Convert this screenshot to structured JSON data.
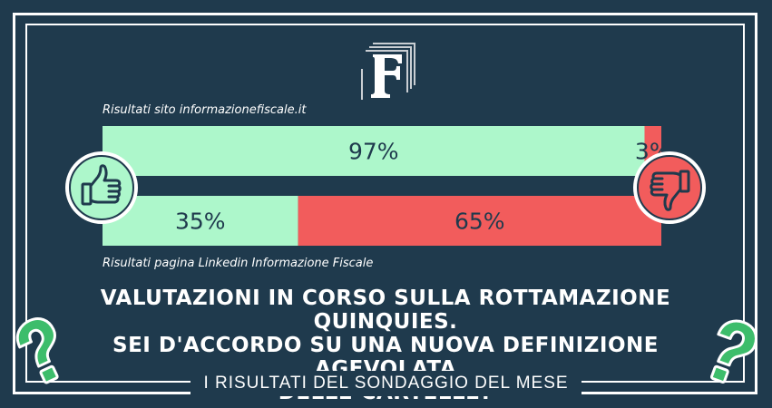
{
  "captions": {
    "top": "Risultati sito informazionefiscale.it",
    "bottom": "Risultati pagina Linkedin Informazione Fiscale"
  },
  "chart_data": {
    "type": "bar",
    "orientation": "horizontal-stacked-100",
    "categories": [
      "Risultati sito informazionefiscale.it",
      "Risultati pagina Linkedin Informazione Fiscale"
    ],
    "series": [
      {
        "values": [
          97,
          35
        ],
        "labels": [
          "97%",
          "35%"
        ],
        "color": "#adf7cb"
      },
      {
        "values": [
          3,
          65
        ],
        "labels": [
          "3%",
          "65%"
        ],
        "color": "#f25c5c"
      }
    ],
    "xlim": [
      0,
      100
    ],
    "grid": false,
    "legend": "none"
  },
  "headline": {
    "line1": "Valutazioni in corso sulla rottamazione quinquies.",
    "line2": "Sei d'accordo su una nuova definizione agevolata",
    "line3": "delle cartelle?"
  },
  "footer": "I RISULTATI DEL SONDAGGIO DEL MESE",
  "icons": {
    "logo": "informazione-fiscale-logo",
    "left": "thumbs-up-icon",
    "right": "thumbs-down-icon",
    "deco": "question-mark-icon"
  },
  "colors": {
    "background": "#1f3a4d",
    "positive": "#adf7cb",
    "negative": "#f25c5c",
    "bar_text": "#1f3a4d",
    "question": "#3dbd6b"
  }
}
